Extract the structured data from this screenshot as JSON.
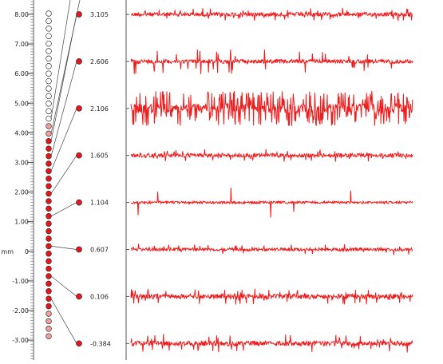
{
  "depth_axis": {
    "unit_label": "mm",
    "ticks": [
      "8.00",
      "7.00",
      "6.00",
      "5.00",
      "4.00",
      "3.00",
      "2.00",
      "1.00",
      "0",
      "-1.00",
      "-2.00",
      "-3.00"
    ]
  },
  "channels": [
    {
      "label": "3.105",
      "color": "#e8141b"
    },
    {
      "label": "2.606",
      "color": "#e8141b"
    },
    {
      "label": "2.106",
      "color": "#e8141b"
    },
    {
      "label": "1.605",
      "color": "#e8141b"
    },
    {
      "label": "1.104",
      "color": "#e8141b"
    },
    {
      "label": "0.607",
      "color": "#e8141b"
    },
    {
      "label": "0.106",
      "color": "#e8141b"
    },
    {
      "label": "-0.384",
      "color": "#e8141b"
    }
  ],
  "colors": {
    "trace": "#ee1c1c",
    "electrode_active": "#e8141b",
    "electrode_inactive": "#ffffff",
    "electrode_mid": "#f2a0a0"
  }
}
